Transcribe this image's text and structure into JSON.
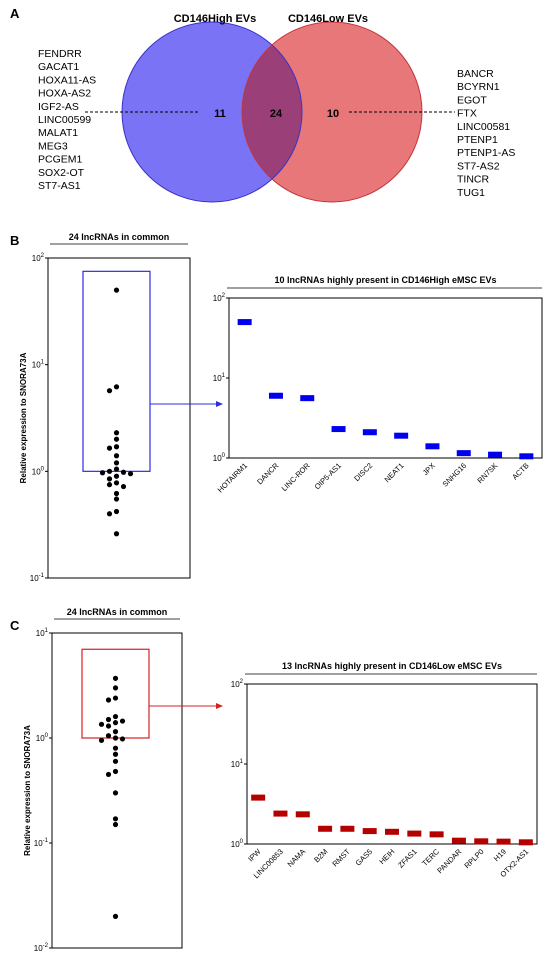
{
  "panels": {
    "a": "A",
    "b": "B",
    "c": "C"
  },
  "venn": {
    "left_title": "CD146High EVs",
    "right_title": "CD146Low EVs",
    "left_count": "11",
    "overlap_count": "24",
    "right_count": "10",
    "left_list": [
      "FENDRR",
      "GACAT1",
      "HOXA11-AS",
      "HOXA-AS2",
      "IGF2-AS",
      "LINC00599",
      "MALAT1",
      "MEG3",
      "PCGEM1",
      "SOX2-OT",
      "ST7-AS1"
    ],
    "right_list": [
      "BANCR",
      "BCYRN1",
      "EGOT",
      "FTX",
      "LINC00581",
      "PTENP1",
      "PTENP1-AS",
      "ST7-AS2",
      "TINCR",
      "TUG1"
    ],
    "colors": {
      "left": "#7b73f5",
      "overlap": "#9a3f78",
      "right": "#e8777a",
      "left_stroke": "#3a32c8",
      "right_stroke": "#c3353b"
    }
  },
  "chart_data": [
    {
      "id": "b-scatter",
      "type": "scatter",
      "title": "24 lncRNAs in common",
      "ylabel": "Relative expression to SNORA73A",
      "y_scale": "log",
      "ylim": [
        0.1,
        100
      ],
      "y_ticks": [
        {
          "v": 0.1,
          "b": "10",
          "e": "-1"
        },
        {
          "v": 1,
          "b": "10",
          "e": "0"
        },
        {
          "v": 10,
          "b": "10",
          "e": "1"
        },
        {
          "v": 100,
          "b": "10",
          "e": "2"
        }
      ],
      "values": [
        50,
        6.2,
        5.7,
        2.3,
        2.0,
        1.7,
        1.65,
        1.4,
        1.2,
        1.05,
        1.0,
        0.98,
        0.97,
        0.95,
        0.9,
        0.85,
        0.78,
        0.75,
        0.72,
        0.62,
        0.55,
        0.42,
        0.4,
        0.26
      ],
      "highlight_box": [
        1.0,
        75
      ],
      "highlight_color": "#2d2de0"
    },
    {
      "id": "b-bars",
      "type": "bar",
      "title": "10 lncRNAs highly present in CD146High eMSC EVs",
      "y_scale": "log",
      "ylim": [
        1,
        100
      ],
      "y_ticks": [
        {
          "v": 1,
          "b": "10",
          "e": "0"
        },
        {
          "v": 10,
          "b": "10",
          "e": "1"
        },
        {
          "v": 100,
          "b": "10",
          "e": "2"
        }
      ],
      "categories": [
        "HOTAIRM1",
        "DANCR",
        "LINC-ROR",
        "OIP5-AS1",
        "DISC2",
        "NEAT1",
        "JPX",
        "SNHG16",
        "RN7SK",
        "ACTB"
      ],
      "values": [
        50,
        6.0,
        5.6,
        2.3,
        2.1,
        1.9,
        1.4,
        1.15,
        1.1,
        1.05
      ],
      "color": "#0000ee"
    },
    {
      "id": "c-scatter",
      "type": "scatter",
      "title": "24 lncRNAs in common",
      "ylabel": "Relative expression to SNORA73A",
      "y_scale": "log",
      "ylim": [
        0.01,
        10
      ],
      "y_ticks": [
        {
          "v": 0.01,
          "b": "10",
          "e": "-2"
        },
        {
          "v": 0.1,
          "b": "10",
          "e": "-1"
        },
        {
          "v": 1,
          "b": "10",
          "e": "0"
        },
        {
          "v": 10,
          "b": "10",
          "e": "1"
        }
      ],
      "values": [
        3.7,
        3.0,
        2.4,
        2.3,
        1.6,
        1.5,
        1.45,
        1.4,
        1.35,
        1.3,
        1.15,
        1.05,
        1.0,
        0.98,
        0.95,
        0.8,
        0.7,
        0.6,
        0.48,
        0.45,
        0.3,
        0.17,
        0.15,
        0.02
      ],
      "highlight_box": [
        1.0,
        7.0
      ],
      "highlight_color": "#d42020"
    },
    {
      "id": "c-bars",
      "type": "bar",
      "title": "13 lncRNAs highly present in CD146Low eMSC EVs",
      "y_scale": "log",
      "ylim": [
        1,
        100
      ],
      "y_ticks": [
        {
          "v": 1,
          "b": "10",
          "e": "0"
        },
        {
          "v": 10,
          "b": "10",
          "e": "1"
        },
        {
          "v": 100,
          "b": "10",
          "e": "2"
        }
      ],
      "categories": [
        "IPW",
        "LINC00853",
        "NAMA",
        "B2M",
        "RMST",
        "GAS5",
        "HEIH",
        "ZFAS1",
        "TERC",
        "PANDAR",
        "RPLP0",
        "H19",
        "OTX2-AS1"
      ],
      "values": [
        3.8,
        2.4,
        2.35,
        1.55,
        1.55,
        1.45,
        1.42,
        1.35,
        1.32,
        1.1,
        1.08,
        1.07,
        1.05
      ],
      "color": "#b50000"
    }
  ]
}
